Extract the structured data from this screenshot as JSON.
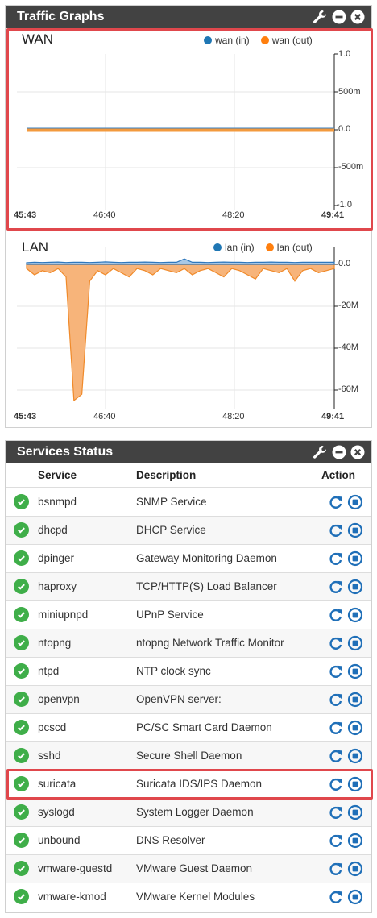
{
  "traffic": {
    "title": "Traffic Graphs",
    "icons": [
      "wrench-icon",
      "minus-circle-icon",
      "close-circle-icon"
    ],
    "wan": {
      "title": "WAN",
      "legend": [
        {
          "label": "wan (in)",
          "color": "#1f77b4"
        },
        {
          "label": "wan (out)",
          "color": "#ff7f0e"
        }
      ],
      "yticks": [
        "1.0",
        "500m",
        "0.0",
        "-500m",
        "-1.0"
      ],
      "xticks": [
        "45:43",
        "46:40",
        "48:20",
        "49:41"
      ]
    },
    "lan": {
      "title": "LAN",
      "legend": [
        {
          "label": "lan (in)",
          "color": "#1f77b4"
        },
        {
          "label": "lan (out)",
          "color": "#ff7f0e"
        }
      ],
      "yticks": [
        "0.0",
        "-20M",
        "-40M",
        "-60M"
      ],
      "xticks": [
        "45:43",
        "46:40",
        "48:20",
        "49:41"
      ]
    }
  },
  "chart_data": [
    {
      "type": "area",
      "title": "WAN",
      "x_range": [
        "45:43",
        "49:41"
      ],
      "ylim": [
        -1.0,
        1.0
      ],
      "series": [
        {
          "name": "wan (in)",
          "values": [
            0,
            0,
            0,
            0,
            0,
            0,
            0,
            0,
            0,
            0
          ]
        },
        {
          "name": "wan (out)",
          "values": [
            0,
            0,
            0,
            0,
            0,
            0,
            0,
            0,
            0,
            0
          ]
        }
      ]
    },
    {
      "type": "area",
      "title": "LAN",
      "x_range": [
        "45:43",
        "49:41"
      ],
      "ylim": [
        -65,
        2
      ],
      "y_unit": "M",
      "series": [
        {
          "name": "lan (in)",
          "values": [
            0.8,
            1.0,
            0.9,
            1.0,
            1.1,
            0.9,
            1.0,
            1.0,
            0.9,
            1.0,
            1.2,
            1.0,
            0.9,
            1.0,
            1.0,
            1.1,
            1.0,
            0.9,
            1.0,
            1.0,
            2.6,
            1.0,
            1.0,
            0.9,
            1.0,
            1.1,
            1.0,
            1.0,
            0.9,
            1.0,
            1.0,
            1.1,
            1.0,
            1.0,
            0.9,
            1.0,
            1.0,
            1.0,
            1.0,
            1.0
          ]
        },
        {
          "name": "lan (out)",
          "values": [
            -2,
            -5,
            -3,
            -4,
            -2,
            -6,
            -65,
            -62,
            -8,
            -3,
            -5,
            -2,
            -4,
            -6,
            -2,
            -3,
            -5,
            -2,
            -3,
            -4,
            -2,
            -5,
            -3,
            -2,
            -4,
            -6,
            -2,
            -3,
            -5,
            -7,
            -2,
            -3,
            -4,
            -2,
            -8,
            -3,
            -2,
            -4,
            -3,
            -2
          ]
        }
      ]
    }
  ],
  "services": {
    "title": "Services Status",
    "icons": [
      "wrench-icon",
      "minus-circle-icon",
      "close-circle-icon"
    ],
    "columns": {
      "service": "Service",
      "description": "Description",
      "action": "Action"
    },
    "rows": [
      {
        "name": "bsnmpd",
        "description": "SNMP Service"
      },
      {
        "name": "dhcpd",
        "description": "DHCP Service"
      },
      {
        "name": "dpinger",
        "description": "Gateway Monitoring Daemon"
      },
      {
        "name": "haproxy",
        "description": "TCP/HTTP(S) Load Balancer"
      },
      {
        "name": "miniupnpd",
        "description": "UPnP Service"
      },
      {
        "name": "ntopng",
        "description": "ntopng Network Traffic Monitor"
      },
      {
        "name": "ntpd",
        "description": "NTP clock sync"
      },
      {
        "name": "openvpn",
        "description": "OpenVPN server:"
      },
      {
        "name": "pcscd",
        "description": "PC/SC Smart Card Daemon"
      },
      {
        "name": "sshd",
        "description": "Secure Shell Daemon"
      },
      {
        "name": "suricata",
        "description": "Suricata IDS/IPS Daemon"
      },
      {
        "name": "syslogd",
        "description": "System Logger Daemon"
      },
      {
        "name": "unbound",
        "description": "DNS Resolver"
      },
      {
        "name": "vmware-guestd",
        "description": "VMware Guest Daemon"
      },
      {
        "name": "vmware-kmod",
        "description": "VMware Kernel Modules"
      }
    ]
  },
  "colors": {
    "accent_blue": "#1f6fb8",
    "status_ok": "#3fae49",
    "highlight": "#e0474c",
    "header_bg": "#424242"
  }
}
